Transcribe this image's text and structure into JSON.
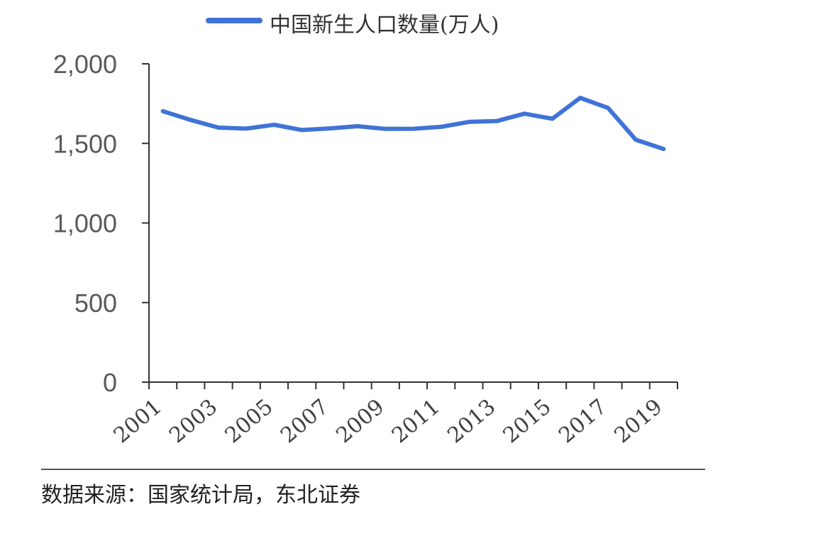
{
  "chart_data": {
    "type": "line",
    "x": [
      "2001",
      "2002",
      "2003",
      "2004",
      "2005",
      "2006",
      "2007",
      "2008",
      "2009",
      "2010",
      "2011",
      "2012",
      "2013",
      "2014",
      "2015",
      "2016",
      "2017",
      "2018",
      "2019"
    ],
    "series": [
      {
        "name": "中国新生人口数量(万人)",
        "values": [
          1702,
          1647,
          1599,
          1593,
          1617,
          1584,
          1594,
          1608,
          1591,
          1592,
          1604,
          1635,
          1640,
          1687,
          1655,
          1786,
          1723,
          1523,
          1465
        ],
        "color": "#3f73d6"
      }
    ],
    "ylim": [
      0,
      2000
    ],
    "yticks": [
      "0",
      "500",
      "1,000",
      "1,500",
      "2,000"
    ],
    "xtick_labels": [
      "2001",
      "2003",
      "2005",
      "2007",
      "2009",
      "2011",
      "2013",
      "2015",
      "2017",
      "2019"
    ],
    "grid": false,
    "legend_position": "top"
  },
  "source": "数据来源：国家统计局，东北证券"
}
